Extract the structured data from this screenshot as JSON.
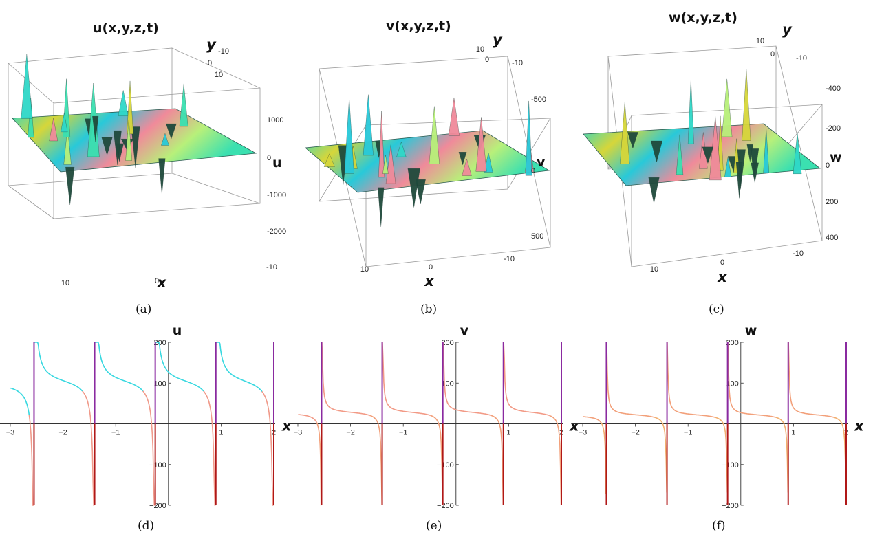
{
  "chart_data": [
    {
      "type": "surface3d",
      "title": "u(x,y,z,t)",
      "caption": "(a)",
      "xlabel": "x",
      "ylabel": "y",
      "zlabel": "u",
      "x_ticks": [
        "10",
        "0",
        "-10"
      ],
      "y_ticks": [
        "-10",
        "0",
        "10"
      ],
      "z_ticks": [
        "1000",
        "0",
        "-1000",
        "-2000"
      ],
      "zlim": [
        -2000,
        1500
      ],
      "surface_colors": [
        "#2fd8c8",
        "#d6d63a",
        "#28c9d9",
        "#f08a9a",
        "#b8f07a",
        "#3be0b0"
      ]
    },
    {
      "type": "surface3d",
      "title": "v(x,y,z,t)",
      "caption": "(b)",
      "xlabel": "x",
      "ylabel": "y",
      "zlabel": "v",
      "x_ticks": [
        "10",
        "0",
        "-10"
      ],
      "y_ticks": [
        "10",
        "0",
        "-10"
      ],
      "z_ticks": [
        "-500",
        "0",
        "500"
      ],
      "zlim": [
        -700,
        600
      ],
      "surface_colors": [
        "#2fd8c8",
        "#d6d63a",
        "#28c9d9",
        "#f08a9a",
        "#b8f07a",
        "#3be0b0"
      ]
    },
    {
      "type": "surface3d",
      "title": "w(x,y,z,t)",
      "caption": "(c)",
      "xlabel": "x",
      "ylabel": "y",
      "zlabel": "w",
      "x_ticks": [
        "10",
        "0",
        "-10"
      ],
      "y_ticks": [
        "10",
        "0",
        "-10"
      ],
      "z_ticks": [
        "-400",
        "-200",
        "0",
        "200",
        "400"
      ],
      "zlim": [
        -500,
        400
      ],
      "surface_colors": [
        "#2fd8c8",
        "#d6d63a",
        "#28c9d9",
        "#f08a9a",
        "#b8f07a",
        "#3be0b0"
      ]
    },
    {
      "type": "line",
      "caption": "(d)",
      "xlabel": "x",
      "ylabel": "u",
      "xlim": [
        -3,
        2
      ],
      "ylim": [
        -200,
        200
      ],
      "x_ticks": [
        -3,
        -2,
        -1,
        1,
        2
      ],
      "y_ticks": [
        -200,
        -100,
        100,
        200
      ],
      "poles": [
        -2.55,
        -1.4,
        -0.25,
        0.9,
        2.0
      ],
      "offset": 105,
      "amplitude": 10,
      "colors": {
        "branch": "#38d8e0",
        "tail": "#f09a8a",
        "pole": "#8a2aa0",
        "pole_low": "#b01818"
      }
    },
    {
      "type": "line",
      "caption": "(e)",
      "xlabel": "x",
      "ylabel": "v",
      "xlim": [
        -3,
        2
      ],
      "ylim": [
        -200,
        200
      ],
      "x_ticks": [
        -3,
        -2,
        -1,
        1,
        2
      ],
      "y_ticks": [
        -200,
        -100,
        100,
        200
      ],
      "poles": [
        -2.55,
        -1.4,
        -0.25,
        0.9,
        2.0
      ],
      "offset": 28,
      "amplitude": 3,
      "colors": {
        "branch": "#f29a86",
        "tail": "#f2a07a",
        "pole": "#8a2aa0",
        "pole_low": "#b01818"
      }
    },
    {
      "type": "line",
      "caption": "(f)",
      "xlabel": "x",
      "ylabel": "w",
      "xlim": [
        -3,
        2
      ],
      "ylim": [
        -200,
        200
      ],
      "x_ticks": [
        -3,
        -2,
        -1,
        1,
        2
      ],
      "y_ticks": [
        -200,
        -100,
        100,
        200
      ],
      "poles": [
        -2.55,
        -1.4,
        -0.25,
        0.9,
        2.0
      ],
      "offset": 22,
      "amplitude": 2.5,
      "colors": {
        "branch": "#f2a07a",
        "tail": "#f2b070",
        "pole": "#8a2aa0",
        "pole_low": "#b01818"
      }
    }
  ]
}
